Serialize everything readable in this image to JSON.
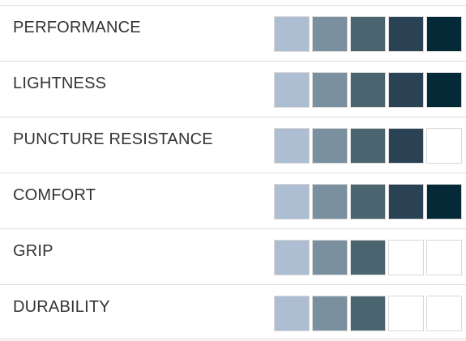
{
  "max_level": 5,
  "level_colors": [
    "#adbdd2",
    "#7a909f",
    "#4a6570",
    "#2b4255",
    "#032a36"
  ],
  "empty_color": "#ffffff",
  "ratings": [
    {
      "label": "PERFORMANCE",
      "value": 5
    },
    {
      "label": "LIGHTNESS",
      "value": 5
    },
    {
      "label": "PUNCTURE RESISTANCE",
      "value": 4
    },
    {
      "label": "COMFORT",
      "value": 5
    },
    {
      "label": "GRIP",
      "value": 3
    },
    {
      "label": "DURABILITY",
      "value": 3
    }
  ]
}
